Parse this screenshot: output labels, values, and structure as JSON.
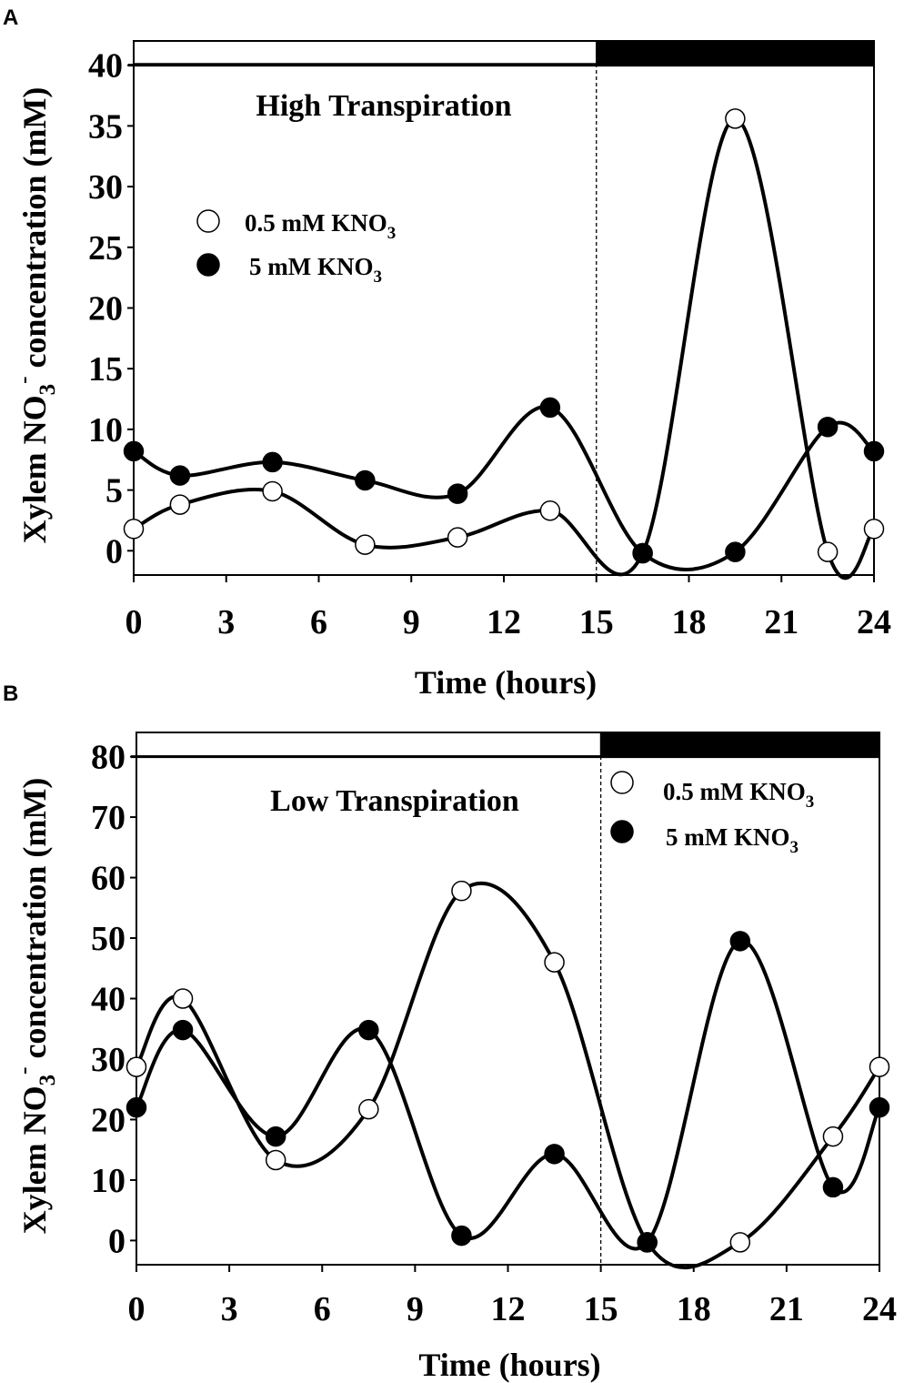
{
  "chart_data": [
    {
      "panel": "A",
      "type": "line",
      "title": "High Transpiration",
      "xlabel": "Time (hours)",
      "ylabel": "Xylem NO3- concentration (mM)",
      "xlim": [
        0,
        24
      ],
      "ylim": [
        -2,
        42
      ],
      "xticks": [
        0,
        3,
        6,
        9,
        12,
        15,
        18,
        21,
        24
      ],
      "yticks": [
        0,
        5,
        10,
        15,
        20,
        25,
        30,
        35,
        40
      ],
      "x_tick_labels": [
        "0",
        "3",
        "6",
        "9",
        "12",
        "15",
        "18",
        "21",
        "24"
      ],
      "y_tick_labels": [
        "0",
        "5",
        "10",
        "15",
        "20",
        "25",
        "30",
        "35",
        "40"
      ],
      "light_period": [
        0,
        15
      ],
      "dark_period": [
        15,
        24
      ],
      "x": [
        0,
        1.5,
        4.5,
        7.5,
        10.5,
        13.5,
        16.5,
        19.5,
        22.5,
        24
      ],
      "series": [
        {
          "name": "0.5 mM KNO3",
          "marker": "open",
          "values": [
            1.8,
            3.8,
            4.9,
            0.5,
            1.1,
            3.3,
            -0.2,
            35.6,
            -0.1,
            1.8
          ]
        },
        {
          "name": "5 mM KNO3",
          "marker": "filled",
          "values": [
            8.2,
            6.2,
            7.3,
            5.8,
            4.7,
            11.8,
            -0.2,
            -0.1,
            10.2,
            8.2
          ]
        }
      ],
      "legend": [
        {
          "base": "0.5 mM KNO",
          "sub": "3"
        },
        {
          "base": "5 mM KNO",
          "sub": "3"
        }
      ],
      "legend_position": "upper-left"
    },
    {
      "panel": "B",
      "type": "line",
      "title": "Low Transpiration",
      "xlabel": "Time (hours)",
      "ylabel": "Xylem NO3- concentration (mM)",
      "xlim": [
        0,
        24
      ],
      "ylim": [
        -4,
        84
      ],
      "xticks": [
        0,
        3,
        6,
        9,
        12,
        15,
        18,
        21,
        24
      ],
      "yticks": [
        0,
        10,
        20,
        30,
        40,
        50,
        60,
        70,
        80
      ],
      "x_tick_labels": [
        "0",
        "3",
        "6",
        "9",
        "12",
        "15",
        "18",
        "21",
        "24"
      ],
      "y_tick_labels": [
        "0",
        "10",
        "20",
        "30",
        "40",
        "50",
        "60",
        "70",
        "80"
      ],
      "light_period": [
        0,
        15
      ],
      "dark_period": [
        15,
        24
      ],
      "x": [
        0,
        1.5,
        4.5,
        7.5,
        10.5,
        13.5,
        16.5,
        19.5,
        22.5,
        24
      ],
      "series": [
        {
          "name": "0.5 mM KNO3",
          "marker": "open",
          "values": [
            28.7,
            40.0,
            13.3,
            21.7,
            57.8,
            46.0,
            -0.3,
            -0.3,
            17.2,
            28.7
          ]
        },
        {
          "name": "5 mM KNO3",
          "marker": "filled",
          "values": [
            22.0,
            34.8,
            17.2,
            34.8,
            0.8,
            14.3,
            -0.3,
            49.5,
            8.8,
            22.0
          ]
        }
      ],
      "legend": [
        {
          "base": "0.5 mM KNO",
          "sub": "3"
        },
        {
          "base": "5 mM KNO",
          "sub": "3"
        }
      ],
      "legend_position": "top-right"
    }
  ],
  "text": {
    "panel_a_label": "A",
    "panel_b_label": "B",
    "ylabel_prefix": "Xylem NO",
    "ylabel_sub": "3",
    "ylabel_sup": "-",
    "ylabel_suffix": " concentration (mM)",
    "xlabel": "Time (hours)"
  },
  "colors": {
    "line": "#000000",
    "open_marker_fill": "#ffffff",
    "filled_marker_fill": "#000000",
    "dark_bar": "#000000"
  }
}
